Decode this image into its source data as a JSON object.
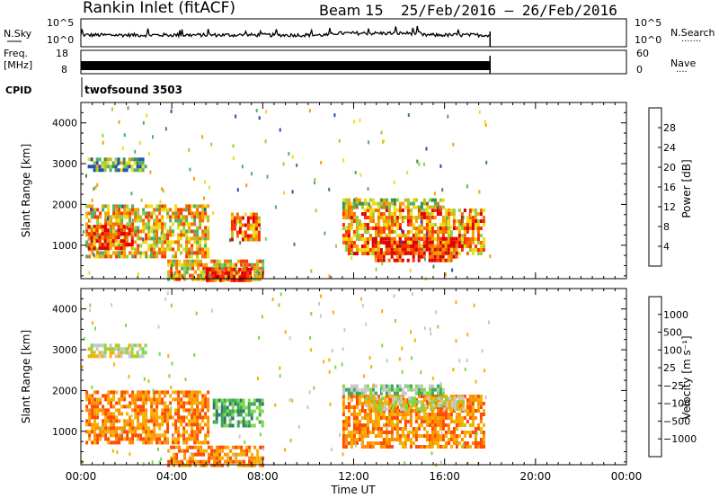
{
  "header": {
    "station": "Rankin Inlet (fitACF)",
    "beam": "Beam 15",
    "dates": "25/Feb/2016 – 26/Feb/2016"
  },
  "noise": {
    "left_label": "N.Sky",
    "right_label": "N.Search",
    "ticks": [
      "10^5",
      "10^0"
    ]
  },
  "freq": {
    "left_label_1": "Freq.",
    "left_label_2": "[MHz]",
    "left_ticks": [
      "18",
      "8"
    ],
    "right_label": "Nave",
    "right_ticks": [
      "60",
      "0"
    ]
  },
  "cpid": {
    "label": "CPID",
    "value": "twofsound 3503"
  },
  "colors": {
    "power": [
      "#0000ff",
      "#1f4faf",
      "#3a8a4a",
      "#4caf68",
      "#9ccc3c",
      "#f0dc10",
      "#f5a000",
      "#f07000",
      "#ff3300",
      "#e00000"
    ],
    "velocity": [
      "#e80000",
      "#ff4a00",
      "#ff8c00",
      "#f5b000",
      "#c8c8c8",
      "#7ed84a",
      "#3aa85a",
      "#2f7a60",
      "#1f4fa0",
      "#1a1acf"
    ]
  },
  "chart_data": [
    {
      "type": "heatmap",
      "name": "power",
      "ylabel": "Slant Range [km]",
      "colorbar_label": "Power [dB]",
      "colorbar_ticks": [
        "4",
        "8",
        "12",
        "16",
        "20",
        "24",
        "28"
      ],
      "colorbar_range": [
        0,
        30
      ],
      "xlim": [
        0,
        24
      ],
      "ylim": [
        180,
        4500
      ],
      "yticks": [
        "1000",
        "2000",
        "3000",
        "4000"
      ],
      "data_end_hour": 18,
      "regions": [
        {
          "t": [
            0.2,
            5.6
          ],
          "r": [
            700,
            2000
          ],
          "v": 18
        },
        {
          "t": [
            0.3,
            2.2
          ],
          "r": [
            900,
            1500
          ],
          "v": 27
        },
        {
          "t": [
            6.6,
            7.8
          ],
          "r": [
            1100,
            1800
          ],
          "v": 22
        },
        {
          "t": [
            0.3,
            2.8
          ],
          "r": [
            2800,
            3150
          ],
          "v": 11
        },
        {
          "t": [
            3.8,
            8.0
          ],
          "r": [
            180,
            650
          ],
          "v": 18
        },
        {
          "t": [
            5.5,
            7.5
          ],
          "r": [
            180,
            450
          ],
          "v": 28
        },
        {
          "t": [
            11.5,
            17.7
          ],
          "r": [
            800,
            1900
          ],
          "v": 21
        },
        {
          "t": [
            12.8,
            16.5
          ],
          "r": [
            650,
            1200
          ],
          "v": 27
        },
        {
          "t": [
            11.5,
            16.0
          ],
          "r": [
            1950,
            2150
          ],
          "v": 14
        }
      ]
    },
    {
      "type": "heatmap",
      "name": "velocity",
      "ylabel": "Slant Range [km]",
      "colorbar_label": "Velocity [m s⁻¹]",
      "colorbar_ticks": [
        "1000",
        "500",
        "100",
        "25",
        "−25",
        "−100",
        "−500",
        "−1000"
      ],
      "xlim": [
        0,
        24
      ],
      "ylim": [
        180,
        4500
      ],
      "xticks": [
        "00:00",
        "04:00",
        "08:00",
        "12:00",
        "16:00",
        "20:00",
        "00:00"
      ],
      "xlabel": "Time UT",
      "data_end_hour": 18,
      "regions": [
        {
          "t": [
            0.2,
            5.6
          ],
          "r": [
            700,
            2000
          ],
          "v": -300
        },
        {
          "t": [
            5.8,
            8.0
          ],
          "r": [
            1100,
            1800
          ],
          "v": 150
        },
        {
          "t": [
            0.3,
            2.8
          ],
          "r": [
            2800,
            3150
          ],
          "v": 0
        },
        {
          "t": [
            3.8,
            8.0
          ],
          "r": [
            180,
            650
          ],
          "v": -150
        },
        {
          "t": [
            11.5,
            17.7
          ],
          "r": [
            650,
            1900
          ],
          "v": -200
        },
        {
          "t": [
            12.5,
            16.8
          ],
          "r": [
            1500,
            1850
          ],
          "v": 10
        },
        {
          "t": [
            11.5,
            16.0
          ],
          "r": [
            1950,
            2150
          ],
          "v": 50
        }
      ]
    }
  ]
}
